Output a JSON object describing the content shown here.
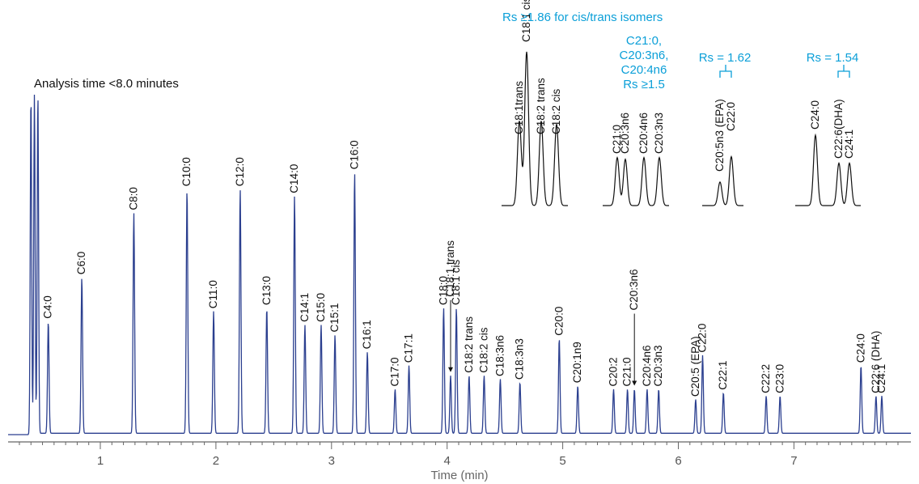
{
  "chart_data": {
    "type": "line",
    "xlabel": "Time (min)",
    "xlim": [
      0.2,
      8.0
    ],
    "x_ticks": [
      1,
      2,
      3,
      4,
      5,
      6,
      7
    ],
    "annotation": "Analysis time <8.0 minutes",
    "line_color": "#2b3f8f",
    "solvent_peaks": [
      {
        "t": 0.4,
        "h": 1.0
      },
      {
        "t": 0.43,
        "h": 1.0
      },
      {
        "t": 0.46,
        "h": 1.0
      }
    ],
    "peaks": [
      {
        "label": "C4:0",
        "t": 0.55,
        "h": 0.33
      },
      {
        "label": "C6:0",
        "t": 0.84,
        "h": 0.46
      },
      {
        "label": "C8:0",
        "t": 1.29,
        "h": 0.65
      },
      {
        "label": "C10:0",
        "t": 1.75,
        "h": 0.72
      },
      {
        "label": "C11:0",
        "t": 1.98,
        "h": 0.36
      },
      {
        "label": "C12:0",
        "t": 2.21,
        "h": 0.72
      },
      {
        "label": "C13:0",
        "t": 2.44,
        "h": 0.37
      },
      {
        "label": "C14:0",
        "t": 2.68,
        "h": 0.7
      },
      {
        "label": "C14:1",
        "t": 2.77,
        "h": 0.32
      },
      {
        "label": "C15:0",
        "t": 2.91,
        "h": 0.32
      },
      {
        "label": "C15:1",
        "t": 3.03,
        "h": 0.29
      },
      {
        "label": "C16:0",
        "t": 3.2,
        "h": 0.77
      },
      {
        "label": "C16:1",
        "t": 3.31,
        "h": 0.24
      },
      {
        "label": "C17:0",
        "t": 3.55,
        "h": 0.13
      },
      {
        "label": "C17:1",
        "t": 3.67,
        "h": 0.2
      },
      {
        "label": "C18:0",
        "t": 3.97,
        "h": 0.37
      },
      {
        "label": "C18:1 trans",
        "t": 4.03,
        "h": 0.17
      },
      {
        "label": "C18:1 cis",
        "t": 4.08,
        "h": 0.37
      },
      {
        "label": "C18:2 trans",
        "t": 4.19,
        "h": 0.17
      },
      {
        "label": "C18:2 cis",
        "t": 4.32,
        "h": 0.17
      },
      {
        "label": "C18:3n6",
        "t": 4.46,
        "h": 0.16
      },
      {
        "label": "C18:3n3",
        "t": 4.63,
        "h": 0.15
      },
      {
        "label": "C20:0",
        "t": 4.97,
        "h": 0.28
      },
      {
        "label": "C20:1n9",
        "t": 5.13,
        "h": 0.14
      },
      {
        "label": "C20:2",
        "t": 5.44,
        "h": 0.13
      },
      {
        "label": "C21:0",
        "t": 5.56,
        "h": 0.13
      },
      {
        "label": "C20:3n6",
        "t": 5.62,
        "h": 0.13
      },
      {
        "label": "C20:4n6",
        "t": 5.73,
        "h": 0.13
      },
      {
        "label": "C20:3n3",
        "t": 5.83,
        "h": 0.13
      },
      {
        "label": "C20:5 (EPA)",
        "t": 6.15,
        "h": 0.1
      },
      {
        "label": "C22:0",
        "t": 6.21,
        "h": 0.23
      },
      {
        "label": "C22:1",
        "t": 6.39,
        "h": 0.12
      },
      {
        "label": "C22:2",
        "t": 6.76,
        "h": 0.11
      },
      {
        "label": "C23:0",
        "t": 6.88,
        "h": 0.11
      },
      {
        "label": "C24:0",
        "t": 7.58,
        "h": 0.2
      },
      {
        "label": "C22:6 (DHA)",
        "t": 7.71,
        "h": 0.11
      },
      {
        "label": "C24:1",
        "t": 7.76,
        "h": 0.11
      }
    ],
    "insets": [
      {
        "title": "Rs ≥1.86 for cis/trans isomers",
        "peak_labels": [
          {
            "label": "C18:1trans"
          },
          {
            "label": "C18:1 cis"
          },
          {
            "label": "C18:2 trans"
          },
          {
            "label": "C18:2 cis"
          }
        ],
        "peak_heights": [
          0.55,
          1.0,
          0.55,
          0.53
        ]
      },
      {
        "title": "C21:0, C20:3n6, C20:4n6 Rs ≥1.5",
        "peak_labels": [
          {
            "label": "C21:0"
          },
          {
            "label": "C20:3n6"
          },
          {
            "label": "C20:4n6"
          },
          {
            "label": "C20:3n3"
          }
        ],
        "peak_heights": [
          0.55,
          0.53,
          0.55,
          0.55
        ]
      },
      {
        "title": "Rs = 1.62",
        "peak_labels": [
          {
            "label": "C20:5n3 (EPA)"
          },
          {
            "label": "C22:0"
          }
        ],
        "peak_heights": [
          0.27,
          0.56
        ]
      },
      {
        "title": "Rs = 1.54",
        "peak_labels": [
          {
            "label": "C24:0"
          },
          {
            "label": "C22:6(DHA)"
          },
          {
            "label": "C24:1"
          }
        ],
        "peak_heights": [
          0.58,
          0.35,
          0.35
        ]
      }
    ]
  }
}
